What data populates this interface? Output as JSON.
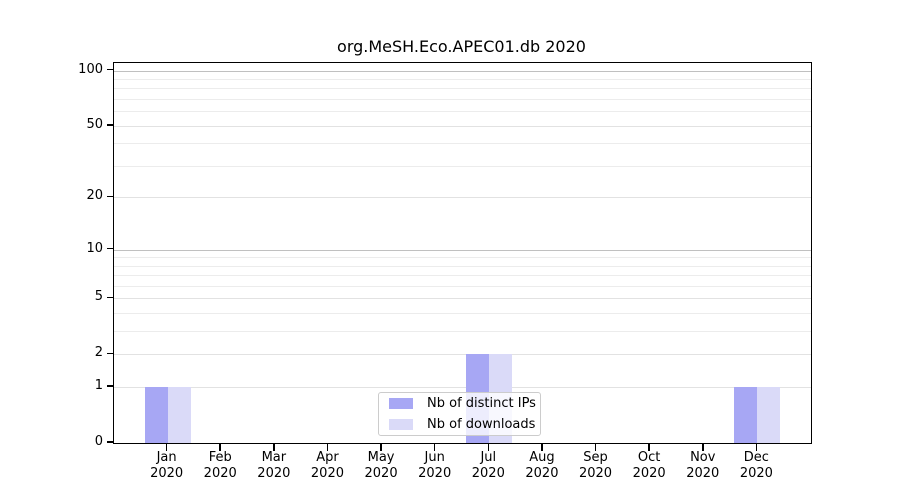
{
  "chart_data": {
    "type": "bar",
    "title": "org.MeSH.Eco.APEC01.db 2020",
    "categories": [
      "Jan",
      "Feb",
      "Mar",
      "Apr",
      "May",
      "Jun",
      "Jul",
      "Aug",
      "Sep",
      "Oct",
      "Nov",
      "Dec"
    ],
    "category_year": "2020",
    "series": [
      {
        "name": "Nb of distinct IPs",
        "color": "#a7a7f4",
        "values": [
          1,
          0,
          0,
          0,
          0,
          0,
          2,
          0,
          0,
          0,
          0,
          1
        ]
      },
      {
        "name": "Nb of downloads",
        "color": "#dadaf8",
        "values": [
          1,
          0,
          0,
          0,
          0,
          0,
          2,
          0,
          0,
          0,
          0,
          1
        ]
      }
    ],
    "yscale": "log1p",
    "ylim": [
      0,
      110
    ],
    "yticks": [
      0,
      1,
      2,
      5,
      10,
      20,
      50,
      100
    ],
    "minor_gridline_values": [
      3,
      4,
      6,
      7,
      8,
      9,
      30,
      40,
      60,
      70,
      80,
      90
    ],
    "decade_gridline_values": [
      10,
      100
    ],
    "grid": true,
    "legend_position": "lower center"
  },
  "grid_colors": {
    "minor": "#ececec",
    "regular": "#e2e2e2",
    "decade": "#c0c0c0"
  }
}
